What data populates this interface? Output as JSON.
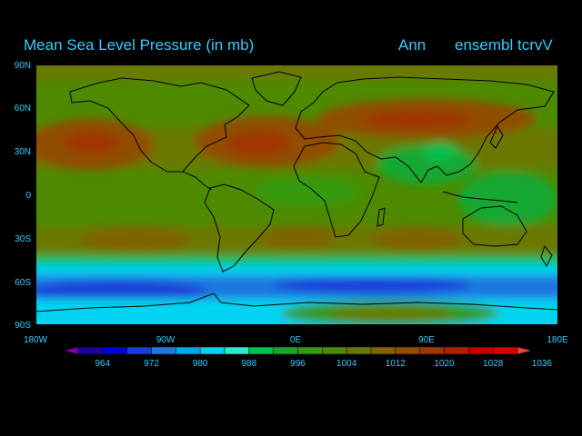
{
  "header": {
    "title": "Mean Sea Level Pressure (in mb)",
    "season": "Ann",
    "run": "ensembl tcrvV"
  },
  "axes": {
    "lat_labels": [
      "90N",
      "60N",
      "30N",
      "0",
      "30S",
      "60S",
      "90S"
    ],
    "lon_labels": [
      "180W",
      "90W",
      "0E",
      "90E",
      "180E"
    ]
  },
  "colorbar": {
    "labels": [
      "964",
      "972",
      "980",
      "988",
      "996",
      "1004",
      "1012",
      "1020",
      "1028",
      "1036"
    ],
    "colors": [
      "#7a00b0",
      "#20009a",
      "#0000d8",
      "#1c3cd8",
      "#1f78e0",
      "#00a8ee",
      "#00d4f0",
      "#30e8c8",
      "#00c050",
      "#18a830",
      "#369a10",
      "#4e8a00",
      "#6a7800",
      "#7f6400",
      "#904e00",
      "#a03600",
      "#b02000",
      "#c00000",
      "#d80000",
      "#f04040"
    ]
  },
  "map": {
    "colors": {
      "ocean_green": "#4e8a00",
      "high_olive": "#6a7800",
      "high_brown": "#904e00",
      "high_red": "#a03600",
      "tropics_green": "#18a830",
      "deep_green": "#00c050",
      "southern_cyan": "#00d4f0",
      "southern_blue": "#1f78e0",
      "deep_blue": "#1c3cd8",
      "coast": "#000000"
    }
  }
}
